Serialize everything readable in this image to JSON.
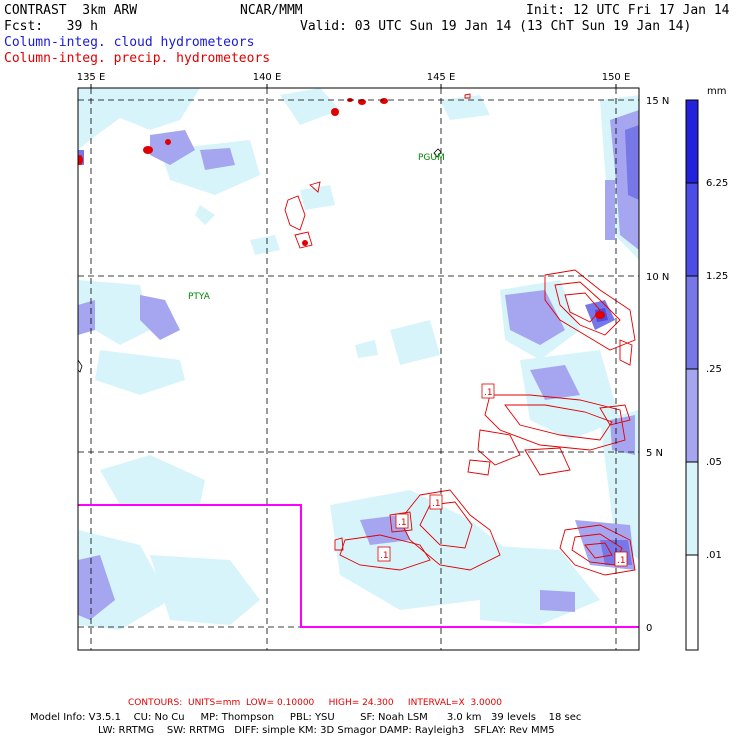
{
  "header": {
    "title": "CONTRAST  3km ARW",
    "forecast": "Fcst:   39 h",
    "org": "NCAR/MMM",
    "init": "Init: 12 UTC Fri 17 Jan 14",
    "valid": "Valid: 03 UTC Sun 19 Jan 14 (13 ChT Sun 19 Jan 14)",
    "legend_cloud": "Column-integ. cloud hydrometeors",
    "legend_precip": "Column-integ. precip. hydrometeors"
  },
  "map": {
    "lon_labels": [
      "135 E",
      "140 E",
      "145 E",
      "150 E"
    ],
    "lat_labels": [
      "15 N",
      "10 N",
      "5 N",
      "0"
    ],
    "place_labels": [
      "PGUM",
      "PTYA"
    ],
    "contour_labels": [
      ".1",
      ".1",
      ".1",
      ".1",
      ".1"
    ]
  },
  "colorbar": {
    "units": "mm",
    "ticks": [
      "6.25",
      "1.25",
      ".25",
      ".05",
      ".01"
    ],
    "colors": [
      "#2222dd",
      "#4c4ce6",
      "#7777e8",
      "#a6a6f0",
      "#d8f4fb",
      "#ffffff"
    ]
  },
  "footer": {
    "contours": "CONTOURS:  UNITS=mm  LOW= 0.10000     HIGH= 24.300     INTERVAL=X  3.0000",
    "model_info_1": "Model Info: V3.5.1    CU: No Cu     MP: Thompson     PBL: YSU        SF: Noah LSM      3.0 km   39 levels    18 sec",
    "model_info_2": "LW: RRTMG    SW: RRTMG   DIFF: simple KM: 3D Smagor DAMP: Rayleigh3   SFLAY: Rev MM5"
  },
  "colors": {
    "cloud_text": "#1a1ad6",
    "precip": "#e00000",
    "domain_box": "#ff00ff",
    "place": "#008800"
  }
}
